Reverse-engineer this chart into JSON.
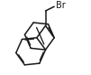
{
  "background_color": "#ffffff",
  "line_color": "#1a1a1a",
  "line_width": 1.1,
  "br_label": "Br",
  "br_fontsize": 7.0,
  "br_color": "#1a1a1a",
  "figsize": [
    1.01,
    0.83
  ],
  "dpi": 100
}
